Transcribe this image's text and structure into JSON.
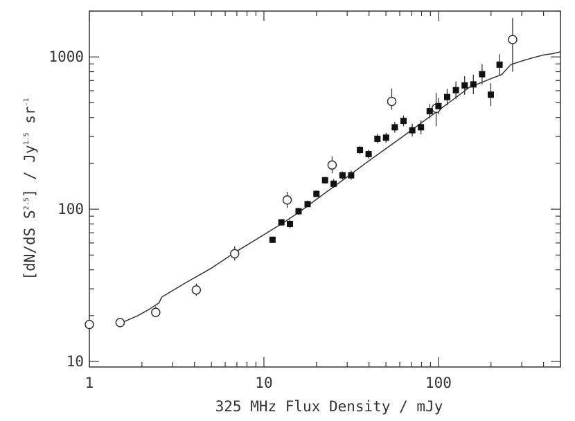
{
  "chart_data": {
    "type": "scatter",
    "x_scale": "log",
    "y_scale": "log",
    "xlim": [
      1,
      500
    ],
    "ylim": [
      9.2,
      2000
    ],
    "xlabel": "325 MHz Flux Density / mJy",
    "ylabel": {
      "base": "[dN/dS S",
      "exp1": "2.5",
      "mid": "] / Jy",
      "exp2": "1.5",
      "tail": " sr",
      "exp3": "-1"
    },
    "x_ticks": [
      {
        "value": 1,
        "label": "1"
      },
      {
        "value": 10,
        "label": "10"
      },
      {
        "value": 100,
        "label": "100"
      }
    ],
    "y_ticks": [
      {
        "value": 10,
        "label": "10"
      },
      {
        "value": 100,
        "label": "100"
      },
      {
        "value": 1000,
        "label": "1000"
      }
    ],
    "series": [
      {
        "name": "open-circles",
        "marker": "open-circle",
        "points": [
          {
            "x": 1.0,
            "y": 17.5,
            "lo": 17.5,
            "hi": 17.5
          },
          {
            "x": 1.5,
            "y": 18.0,
            "lo": 17.0,
            "hi": 19.0
          },
          {
            "x": 2.4,
            "y": 21.0,
            "lo": 19.5,
            "hi": 23.0
          },
          {
            "x": 4.1,
            "y": 29.5,
            "lo": 27.0,
            "hi": 32.5
          },
          {
            "x": 6.8,
            "y": 51.0,
            "lo": 46.0,
            "hi": 57.0
          },
          {
            "x": 13.6,
            "y": 115.0,
            "lo": 102.0,
            "hi": 130.0
          },
          {
            "x": 24.6,
            "y": 195.0,
            "lo": 172.0,
            "hi": 222.0
          },
          {
            "x": 54.0,
            "y": 510.0,
            "lo": 450.0,
            "hi": 620.0
          },
          {
            "x": 97.0,
            "y": 460.0,
            "lo": 350.0,
            "hi": 580.0
          },
          {
            "x": 266.0,
            "y": 1300.0,
            "lo": 800.0,
            "hi": 1800.0
          }
        ]
      },
      {
        "name": "filled-squares",
        "marker": "filled-square",
        "points": [
          {
            "x": 11.2,
            "y": 63,
            "lo": 60,
            "hi": 66
          },
          {
            "x": 12.6,
            "y": 82,
            "lo": 78,
            "hi": 86
          },
          {
            "x": 14.1,
            "y": 80,
            "lo": 75,
            "hi": 85
          },
          {
            "x": 15.8,
            "y": 97,
            "lo": 92,
            "hi": 102
          },
          {
            "x": 17.8,
            "y": 108,
            "lo": 103,
            "hi": 114
          },
          {
            "x": 20.0,
            "y": 126,
            "lo": 120,
            "hi": 133
          },
          {
            "x": 22.4,
            "y": 155,
            "lo": 147,
            "hi": 163
          },
          {
            "x": 25.1,
            "y": 147,
            "lo": 138,
            "hi": 157
          },
          {
            "x": 28.2,
            "y": 167,
            "lo": 157,
            "hi": 177
          },
          {
            "x": 31.6,
            "y": 167,
            "lo": 156,
            "hi": 179
          },
          {
            "x": 35.5,
            "y": 245,
            "lo": 230,
            "hi": 260
          },
          {
            "x": 39.8,
            "y": 230,
            "lo": 215,
            "hi": 246
          },
          {
            "x": 44.7,
            "y": 290,
            "lo": 270,
            "hi": 312
          },
          {
            "x": 50.1,
            "y": 295,
            "lo": 273,
            "hi": 318
          },
          {
            "x": 56.2,
            "y": 345,
            "lo": 318,
            "hi": 375
          },
          {
            "x": 63.1,
            "y": 380,
            "lo": 350,
            "hi": 413
          },
          {
            "x": 70.8,
            "y": 330,
            "lo": 300,
            "hi": 364
          },
          {
            "x": 79.4,
            "y": 345,
            "lo": 310,
            "hi": 384
          },
          {
            "x": 89.1,
            "y": 440,
            "lo": 395,
            "hi": 490
          },
          {
            "x": 100.0,
            "y": 475,
            "lo": 420,
            "hi": 537
          },
          {
            "x": 112.2,
            "y": 545,
            "lo": 480,
            "hi": 618
          },
          {
            "x": 125.9,
            "y": 605,
            "lo": 530,
            "hi": 690
          },
          {
            "x": 141.3,
            "y": 650,
            "lo": 565,
            "hi": 748
          },
          {
            "x": 158.5,
            "y": 660,
            "lo": 570,
            "hi": 765
          },
          {
            "x": 177.8,
            "y": 770,
            "lo": 660,
            "hi": 898
          },
          {
            "x": 199.5,
            "y": 565,
            "lo": 475,
            "hi": 672
          },
          {
            "x": 223.9,
            "y": 890,
            "lo": 760,
            "hi": 1042
          }
        ]
      }
    ],
    "model_curve": {
      "name": "model",
      "points": [
        [
          1.45,
          17.5
        ],
        [
          1.9,
          20.0
        ],
        [
          2.2,
          22.0
        ],
        [
          2.5,
          24.2
        ],
        [
          2.6,
          26.5
        ],
        [
          3.5,
          32.5
        ],
        [
          5.0,
          41.0
        ],
        [
          7.0,
          53.0
        ],
        [
          10.0,
          68.0
        ],
        [
          13.0,
          82.0
        ],
        [
          16.0,
          96.0
        ],
        [
          20.0,
          116.0
        ],
        [
          25.0,
          140.0
        ],
        [
          30.0,
          163.0
        ],
        [
          40.0,
          208.0
        ],
        [
          50.0,
          250.0
        ],
        [
          60.0,
          290.0
        ],
        [
          70.0,
          330.0
        ],
        [
          80.0,
          370.0
        ],
        [
          100.0,
          445.0
        ],
        [
          120.0,
          520.0
        ],
        [
          150.0,
          630.0
        ],
        [
          200.0,
          720.0
        ],
        [
          230.0,
          765.0
        ],
        [
          260.0,
          890.0
        ],
        [
          300.0,
          940.0
        ],
        [
          350.0,
          990.0
        ],
        [
          400.0,
          1030.0
        ],
        [
          450.0,
          1050.0
        ],
        [
          500.0,
          1080.0
        ]
      ]
    }
  }
}
